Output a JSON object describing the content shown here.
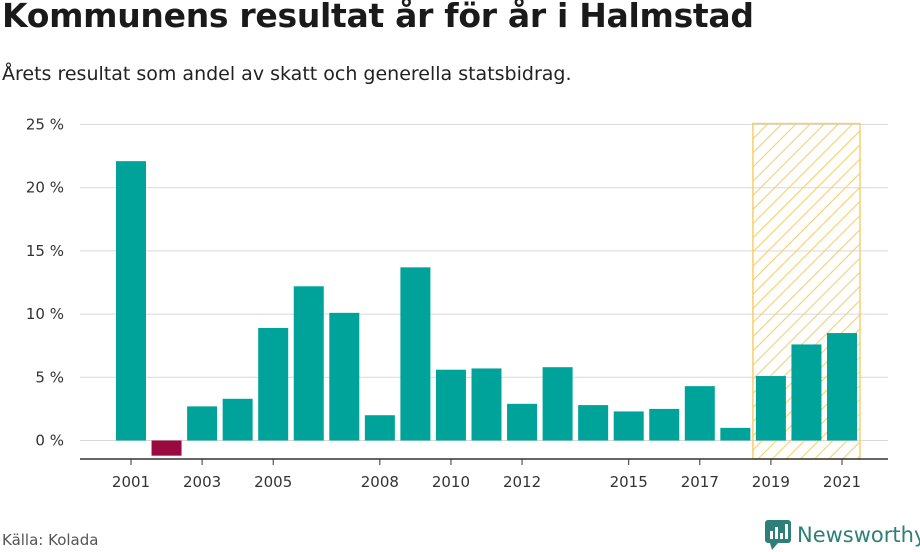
{
  "header": {
    "title": "Kommunens resultat år för år i Halmstad",
    "subtitle": "Årets resultat som andel av skatt och generella statsbidrag."
  },
  "footer": {
    "source": "Källa: Kolada",
    "brand": "Newsworthy",
    "brand_icon": "newsworthy-logo-icon"
  },
  "colors": {
    "positive": "#00a399",
    "negative": "#9b0a3e",
    "forecast_hatch": "#f6cf70",
    "grid": "#d9d9d9",
    "axis": "#333333",
    "brand": "#2f7f79"
  },
  "chart_data": {
    "type": "bar",
    "title": "Kommunens resultat år för år i Halmstad",
    "subtitle": "Årets resultat som andel av skatt och generella statsbidrag.",
    "xlabel": "",
    "ylabel": "",
    "categories": [
      2001,
      2002,
      2003,
      2004,
      2005,
      2006,
      2007,
      2008,
      2009,
      2010,
      2011,
      2012,
      2013,
      2014,
      2015,
      2016,
      2017,
      2018,
      2019,
      2020,
      2021
    ],
    "values": [
      22.1,
      -1.2,
      2.7,
      3.3,
      8.9,
      12.2,
      10.1,
      2.0,
      13.7,
      5.6,
      5.7,
      2.9,
      5.8,
      2.8,
      2.3,
      2.5,
      4.3,
      1.0,
      5.1,
      7.6,
      8.5
    ],
    "x_tick_labels": [
      "2001",
      "2003",
      "2005",
      "2008",
      "2010",
      "2012",
      "2015",
      "2017",
      "2019",
      "2021"
    ],
    "y_ticks": [
      0,
      5,
      10,
      15,
      20,
      25
    ],
    "y_tick_labels": [
      "0 %",
      "5 %",
      "10 %",
      "15 %",
      "20 %",
      "25 %"
    ],
    "ylim": [
      -1.5,
      25
    ],
    "highlight_range": [
      2019,
      2021
    ],
    "highlight_style": "hatched",
    "grid": true,
    "legend": false
  }
}
